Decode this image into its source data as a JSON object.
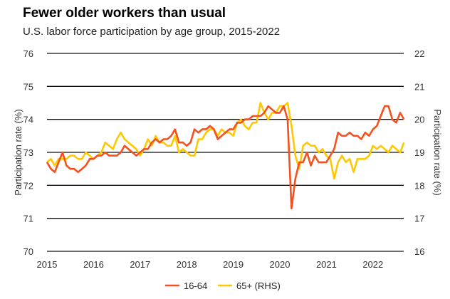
{
  "chart_data": {
    "type": "line",
    "title": "Fewer older workers than usual",
    "subtitle": "U.S. labor force participation by age group, 2015-2022",
    "ylabel": "Participation rate (%)",
    "y2label": "Participation rate (%)",
    "ylim": [
      70,
      76
    ],
    "y2lim": [
      16,
      22
    ],
    "yticks": [
      "70",
      "71",
      "72",
      "73",
      "74",
      "75",
      "76"
    ],
    "y2ticks": [
      "16",
      "17",
      "18",
      "19",
      "20",
      "21",
      "22"
    ],
    "xticks": [
      "2015",
      "2016",
      "2017",
      "2018",
      "2019",
      "2020",
      "2021",
      "2022"
    ],
    "x_start": "2015-01",
    "x_frequency": "monthly",
    "grid": true,
    "legend": "bottom",
    "series": [
      {
        "name": "16-64",
        "axis": "left",
        "color": "#f4511e",
        "values": [
          72.7,
          72.5,
          72.4,
          72.7,
          73.0,
          72.6,
          72.5,
          72.5,
          72.4,
          72.5,
          72.6,
          72.8,
          72.8,
          72.9,
          72.9,
          73.0,
          72.9,
          72.9,
          72.9,
          73.0,
          73.2,
          73.1,
          73.0,
          72.9,
          73.0,
          73.1,
          73.1,
          73.3,
          73.4,
          73.3,
          73.4,
          73.4,
          73.5,
          73.7,
          73.3,
          73.3,
          73.2,
          73.3,
          73.7,
          73.6,
          73.7,
          73.7,
          73.8,
          73.7,
          73.4,
          73.5,
          73.6,
          73.7,
          73.7,
          73.9,
          73.9,
          74.0,
          74.0,
          74.1,
          74.1,
          74.1,
          74.2,
          74.4,
          74.3,
          74.2,
          74.2,
          74.4,
          74.0,
          71.3,
          72.2,
          72.7,
          72.7,
          73.0,
          72.6,
          72.9,
          72.7,
          72.7,
          72.7,
          72.9,
          73.1,
          73.6,
          73.5,
          73.5,
          73.6,
          73.5,
          73.5,
          73.4,
          73.6,
          73.5,
          73.7,
          73.8,
          74.1,
          74.4,
          74.4,
          74.0,
          73.9,
          74.2,
          74.0
        ]
      },
      {
        "name": "65+ (RHS)",
        "axis": "right",
        "color": "#ffc800",
        "values": [
          18.7,
          18.8,
          18.6,
          18.8,
          18.8,
          18.8,
          18.9,
          18.9,
          18.8,
          18.8,
          19.0,
          18.9,
          18.8,
          18.9,
          19.0,
          19.3,
          19.2,
          19.1,
          19.4,
          19.6,
          19.4,
          19.3,
          19.2,
          19.1,
          18.9,
          19.1,
          19.4,
          19.2,
          19.5,
          19.3,
          19.3,
          19.2,
          19.2,
          19.5,
          19.0,
          19.1,
          19.0,
          18.9,
          18.9,
          19.4,
          19.4,
          19.6,
          19.7,
          19.7,
          19.5,
          19.7,
          19.6,
          19.6,
          19.5,
          19.9,
          20.0,
          19.8,
          19.7,
          19.9,
          19.9,
          20.5,
          20.2,
          20.0,
          20.2,
          20.2,
          20.4,
          20.4,
          20.5,
          19.8,
          18.9,
          18.5,
          19.2,
          19.3,
          19.2,
          19.2,
          19.0,
          19.1,
          18.9,
          18.8,
          18.2,
          18.7,
          18.9,
          18.7,
          18.8,
          18.4,
          18.8,
          18.8,
          18.8,
          18.9,
          19.2,
          19.1,
          19.2,
          19.1,
          19.0,
          19.2,
          19.1,
          19.0,
          19.3
        ]
      }
    ]
  }
}
